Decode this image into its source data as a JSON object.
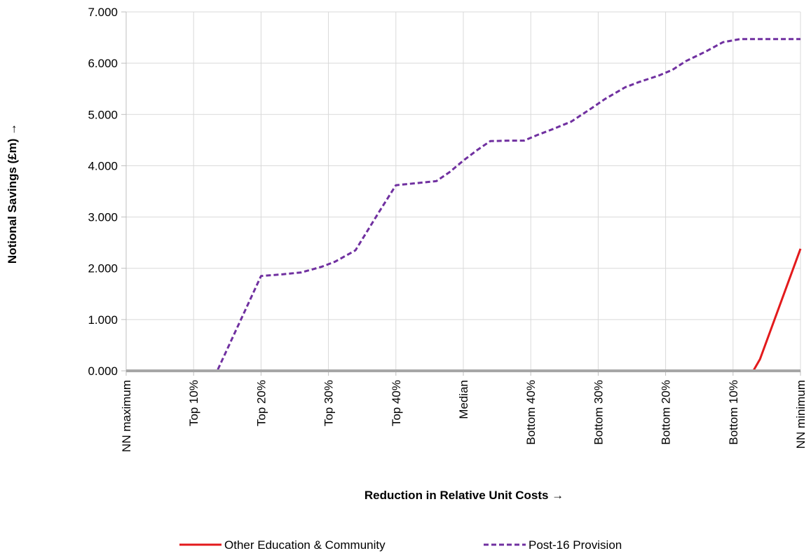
{
  "chart_data": {
    "type": "line",
    "xlabel": "Reduction in Relative Unit Costs →",
    "ylabel": "Notional Savings (£m) →",
    "categories": [
      "NN maximum",
      "Top 10%",
      "Top 20%",
      "Top 30%",
      "Top 40%",
      "Median",
      "Bottom 40%",
      "Bottom 30%",
      "Bottom 20%",
      "Bottom 10%",
      "NN minimum"
    ],
    "ylim": [
      0,
      7
    ],
    "y_ticks": [
      "0.000",
      "1.000",
      "2.000",
      "3.000",
      "4.000",
      "5.000",
      "6.000",
      "7.000"
    ],
    "grid": "vertical and horizontal",
    "legend_position": "bottom",
    "series": [
      {
        "name": "Other Education & Community",
        "color": "#e31a1c",
        "dash": "solid",
        "points": [
          [
            0,
            0
          ],
          [
            9.3,
            0
          ],
          [
            9.4,
            0.23
          ],
          [
            10,
            2.38
          ]
        ]
      },
      {
        "name": "Post-16 Provision",
        "color": "#7030a0",
        "dash": "dashed",
        "points": [
          [
            0,
            0
          ],
          [
            1.35,
            0
          ],
          [
            2,
            1.85
          ],
          [
            2.3,
            1.88
          ],
          [
            2.6,
            1.92
          ],
          [
            2.9,
            2.03
          ],
          [
            3.1,
            2.13
          ],
          [
            3.4,
            2.35
          ],
          [
            3.75,
            3.1
          ],
          [
            4,
            3.62
          ],
          [
            4.3,
            3.66
          ],
          [
            4.6,
            3.7
          ],
          [
            4.8,
            3.88
          ],
          [
            5,
            4.1
          ],
          [
            5.2,
            4.3
          ],
          [
            5.4,
            4.48
          ],
          [
            5.7,
            4.49
          ],
          [
            5.9,
            4.49
          ],
          [
            6.1,
            4.6
          ],
          [
            6.3,
            4.7
          ],
          [
            6.6,
            4.86
          ],
          [
            6.9,
            5.12
          ],
          [
            7.1,
            5.3
          ],
          [
            7.4,
            5.53
          ],
          [
            7.6,
            5.63
          ],
          [
            7.9,
            5.76
          ],
          [
            8.1,
            5.87
          ],
          [
            8.3,
            6.04
          ],
          [
            8.6,
            6.23
          ],
          [
            8.85,
            6.41
          ],
          [
            9.1,
            6.47
          ],
          [
            9.5,
            6.47
          ],
          [
            10,
            6.47
          ]
        ]
      }
    ]
  }
}
